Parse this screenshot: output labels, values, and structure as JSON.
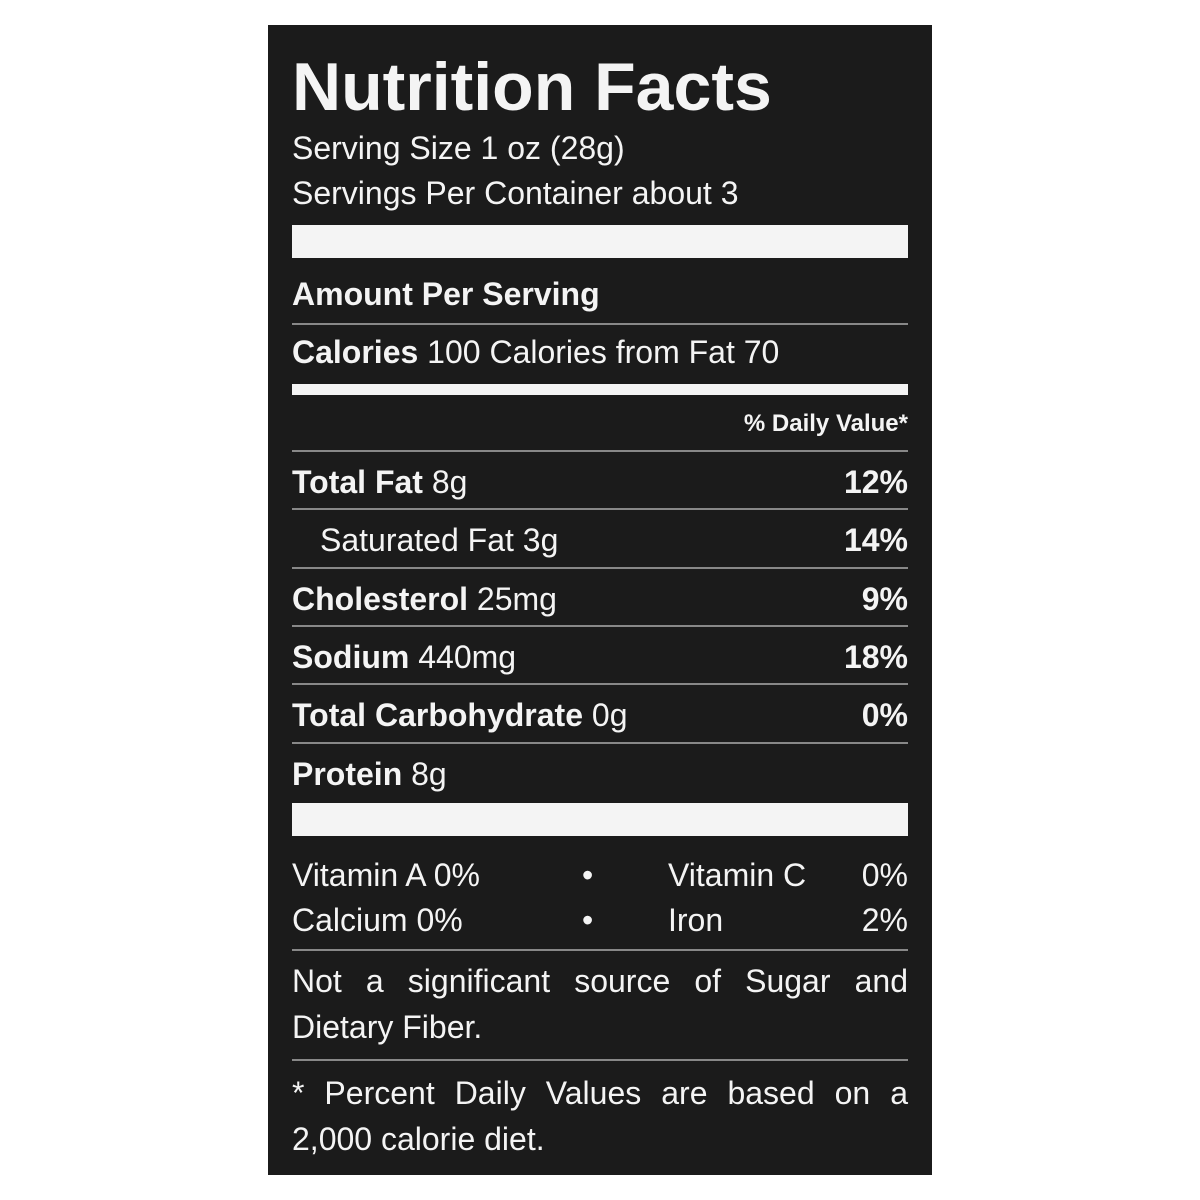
{
  "title": "Nutrition Facts",
  "serving_size": "Serving Size 1 oz (28g)",
  "servings_per_container": "Servings Per Container about 3",
  "amount_per_serving": "Amount Per Serving",
  "calories": {
    "label": "Calories",
    "value": "100",
    "from_fat": "Calories from Fat 70"
  },
  "daily_value_header": "% Daily Value*",
  "nutrients": [
    {
      "name": "Total Fat",
      "amount": "8g",
      "daily_value": "12%"
    },
    {
      "name": "Saturated Fat",
      "amount": "3g",
      "daily_value": "14%"
    },
    {
      "name": "Cholesterol",
      "amount": "25mg",
      "daily_value": "9%"
    },
    {
      "name": "Sodium",
      "amount": "440mg",
      "daily_value": "18%"
    },
    {
      "name": "Total Carbohydrate",
      "amount": "0g",
      "daily_value": "0%"
    },
    {
      "name": "Protein",
      "amount": "8g"
    }
  ],
  "vitamins": [
    {
      "name": "Vitamin A",
      "value": "0%"
    },
    {
      "name": "Vitamin C",
      "value": "0%"
    },
    {
      "name": "Calcium",
      "value": "0%"
    },
    {
      "name": "Iron",
      "value": "2%"
    }
  ],
  "note": "Not a significant source of Sugar and Dietary Fiber.",
  "footnote": "* Percent Daily Values are based on a 2,000 calorie diet."
}
